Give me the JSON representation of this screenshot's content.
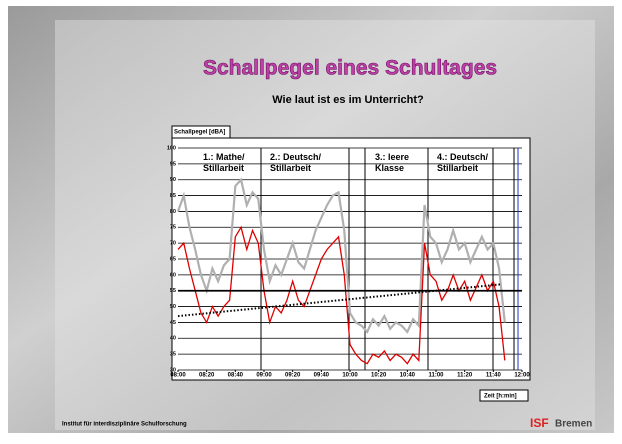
{
  "title": "Schallpegel eines Schultages",
  "subtitle": "Wie laut ist es im Unterricht?",
  "footer": "Institut für interdisziplinäre Schulforschung",
  "logo": {
    "mark": "ISF",
    "city": "Bremen"
  },
  "sections": [
    "1.: Mathe/ Stillarbeit",
    "2.: Deutsch/ Stillarbeit",
    "3.: leere Klasse",
    "4.: Deutsch/ Stillarbeit"
  ],
  "chart_data": {
    "type": "line",
    "y_label": "Schallpegel [dBA]",
    "x_label": "Zeit [h:min]",
    "xlim": [
      480,
      720
    ],
    "ylim": [
      30,
      100
    ],
    "xticks": [
      {
        "value": 480,
        "label": "08:00"
      },
      {
        "value": 500,
        "label": "08:20"
      },
      {
        "value": 520,
        "label": "08:40"
      },
      {
        "value": 540,
        "label": "09:00"
      },
      {
        "value": 560,
        "label": "09:20"
      },
      {
        "value": 580,
        "label": "09:40"
      },
      {
        "value": 600,
        "label": "10:00"
      },
      {
        "value": 620,
        "label": "10:20"
      },
      {
        "value": 640,
        "label": "10:40"
      },
      {
        "value": 660,
        "label": "11:00"
      },
      {
        "value": 680,
        "label": "11:20"
      },
      {
        "value": 700,
        "label": "11:40"
      },
      {
        "value": 720,
        "label": "12:00"
      }
    ],
    "yticks": [
      30,
      35,
      40,
      45,
      50,
      55,
      60,
      65,
      70,
      75,
      80,
      85,
      90,
      95,
      100
    ],
    "grid": true,
    "x": [
      480,
      484,
      488,
      492,
      496,
      500,
      504,
      508,
      512,
      516,
      520,
      524,
      528,
      532,
      536,
      540,
      544,
      548,
      552,
      556,
      560,
      564,
      568,
      572,
      576,
      580,
      584,
      588,
      592,
      596,
      600,
      604,
      608,
      612,
      616,
      620,
      624,
      628,
      632,
      636,
      640,
      644,
      648,
      652,
      656,
      660,
      664,
      668,
      672,
      676,
      680,
      684,
      688,
      692,
      696,
      700,
      704,
      708
    ],
    "series": [
      {
        "color": "#b0b0b0",
        "values": [
          80,
          85,
          75,
          68,
          60,
          55,
          62,
          58,
          63,
          65,
          88,
          90,
          82,
          86,
          84,
          68,
          58,
          63,
          60,
          65,
          70,
          64,
          62,
          68,
          74,
          78,
          82,
          85,
          86,
          74,
          48,
          45,
          44,
          42,
          46,
          44,
          47,
          43,
          45,
          44,
          42,
          46,
          44,
          82,
          72,
          70,
          64,
          68,
          74,
          68,
          70,
          64,
          68,
          72,
          68,
          70,
          62,
          45
        ]
      },
      {
        "color": "#e00000",
        "values": [
          68,
          70,
          62,
          55,
          48,
          45,
          50,
          47,
          50,
          52,
          72,
          75,
          68,
          74,
          70,
          55,
          45,
          50,
          48,
          52,
          58,
          52,
          50,
          55,
          60,
          65,
          68,
          70,
          72,
          60,
          38,
          35,
          33,
          32,
          35,
          34,
          36,
          33,
          35,
          34,
          32,
          35,
          33,
          70,
          60,
          58,
          52,
          55,
          60,
          55,
          58,
          52,
          56,
          60,
          55,
          58,
          50,
          33
        ]
      }
    ],
    "reference_line": 55,
    "trend": {
      "x": [
        480,
        705
      ],
      "values": [
        47,
        57
      ]
    }
  }
}
